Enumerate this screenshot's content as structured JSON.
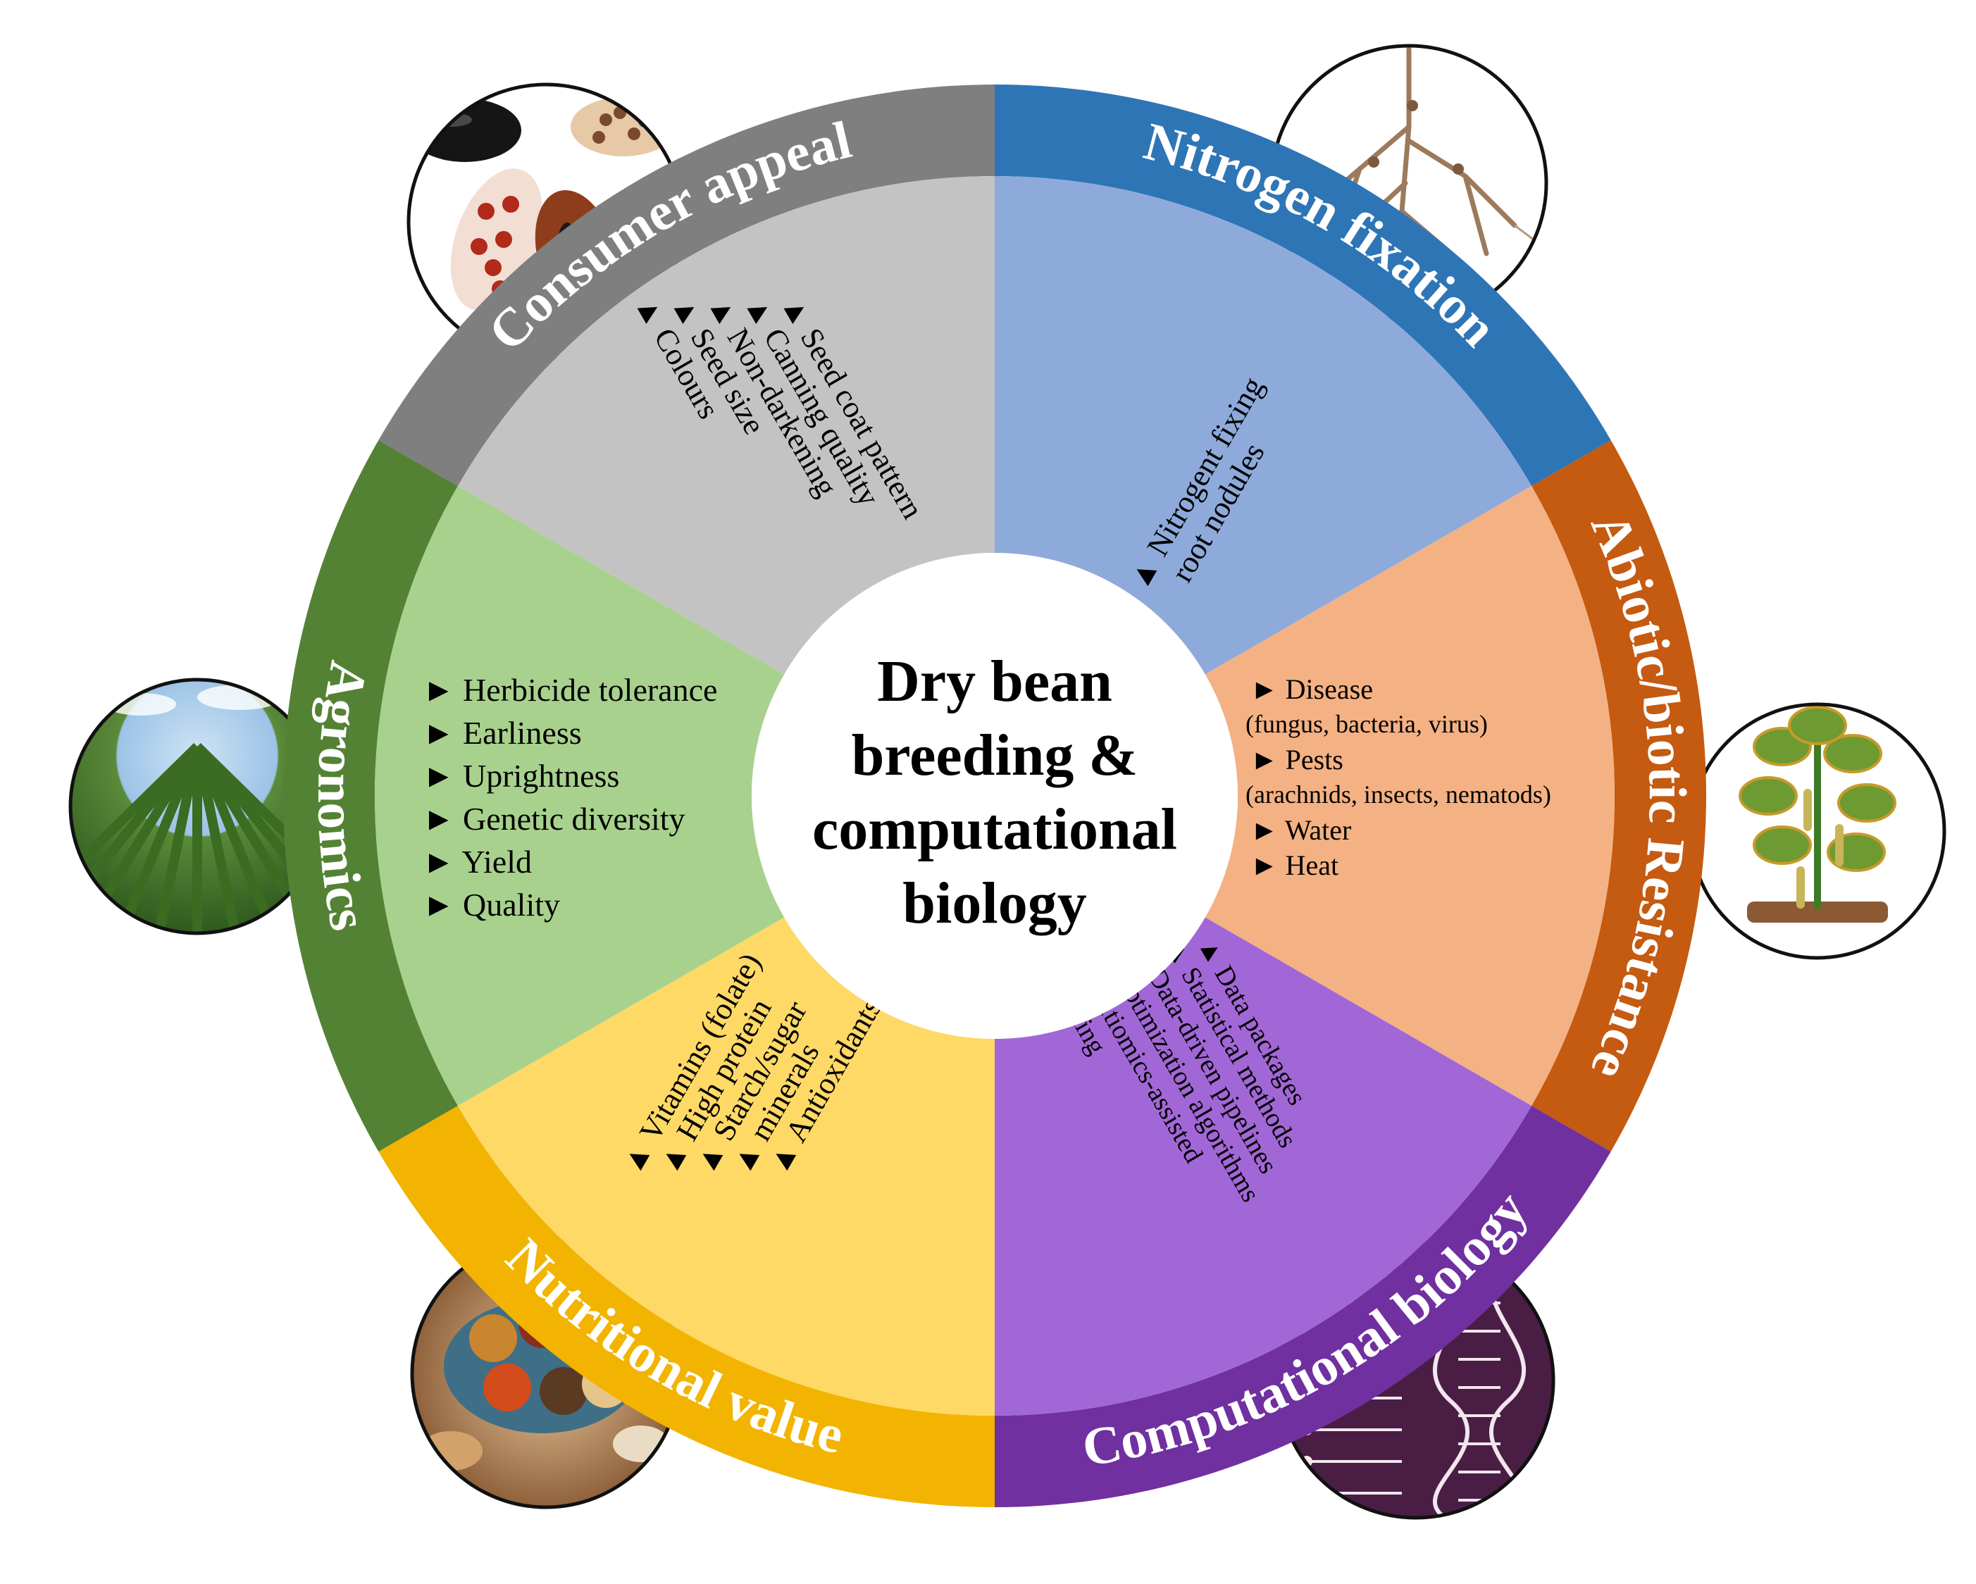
{
  "center": {
    "lines": [
      "Dry bean",
      "breeding &",
      "computational",
      "biology"
    ]
  },
  "segments": [
    {
      "id": "consumer",
      "title": "Consumer appeal",
      "colors": {
        "rim": "#7f7f7f",
        "fill": "#c3c3c3"
      },
      "bullet": "▲",
      "items": [
        "Seed coat pattern",
        "Canning quality",
        "Non-darkening",
        "Seed size",
        "Colours"
      ]
    },
    {
      "id": "nitrogen",
      "title": "Nitrogen fixation",
      "colors": {
        "rim": "#2e75b6",
        "fill": "#8eaadb"
      },
      "bullet": "▲",
      "items": [
        "Nitrogent fixing",
        "root nodules"
      ]
    },
    {
      "id": "abiotic",
      "title": "Abiotic/biotic Resistance",
      "colors": {
        "rim": "#c55a11",
        "fill": "#f4b183"
      },
      "bullet": "►",
      "items": [
        "Disease",
        "(fungus, bacteria, virus)",
        "Pests",
        "(arachnids, insects, nematods)",
        "Water",
        "Heat"
      ]
    },
    {
      "id": "computational",
      "title": "Computational biology",
      "colors": {
        "rim": "#7030a0",
        "fill": "#a267d6"
      },
      "bullet": "▲",
      "items": [
        "Data packages",
        "Statistical methods",
        "Data-driven pipelines",
        "Optimization algorithms",
        "Multiomics-assisted",
        "breeding"
      ]
    },
    {
      "id": "nutritional",
      "title": "Nutritional value",
      "colors": {
        "rim": "#f2b400",
        "fill": "#ffd966"
      },
      "bullet": "▲",
      "items": [
        "Vitamins (folate)",
        "High protein",
        "Starch/sugar",
        "minerals",
        "Antioxidants"
      ]
    },
    {
      "id": "agronomics",
      "title": "Agronomics",
      "colors": {
        "rim": "#548235",
        "fill": "#a9d18e"
      },
      "bullet": "►",
      "items": [
        "Herbicide tolerance",
        "Earliness",
        "Uprightness",
        "Genetic diversity",
        "Yield",
        "Quality"
      ]
    }
  ],
  "illustrations": [
    {
      "name": "beans-illustration",
      "subject": "dry bean seeds"
    },
    {
      "name": "roots-illustration",
      "subject": "root nodules"
    },
    {
      "name": "plant-illustration",
      "subject": "diseased bean plant"
    },
    {
      "name": "field-illustration",
      "subject": "bean field rows"
    },
    {
      "name": "food-illustration",
      "subject": "bowls of legumes"
    },
    {
      "name": "dna-illustration",
      "subject": "DNA circuit"
    }
  ]
}
